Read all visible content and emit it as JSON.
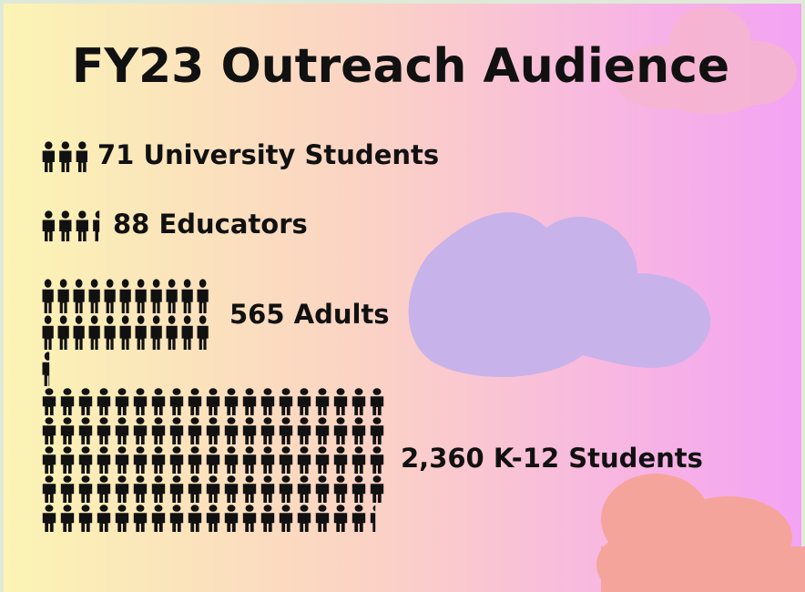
{
  "chart_data": {
    "type": "pictograph",
    "title": "FY23 Outreach Audience",
    "categories": [
      "University Students",
      "Educators",
      "Adults",
      "K-12 Students"
    ],
    "values": [
      71,
      88,
      565,
      2360
    ],
    "value_labels": [
      "71",
      "88",
      "565",
      "2,360"
    ],
    "color": "#111111"
  }
}
